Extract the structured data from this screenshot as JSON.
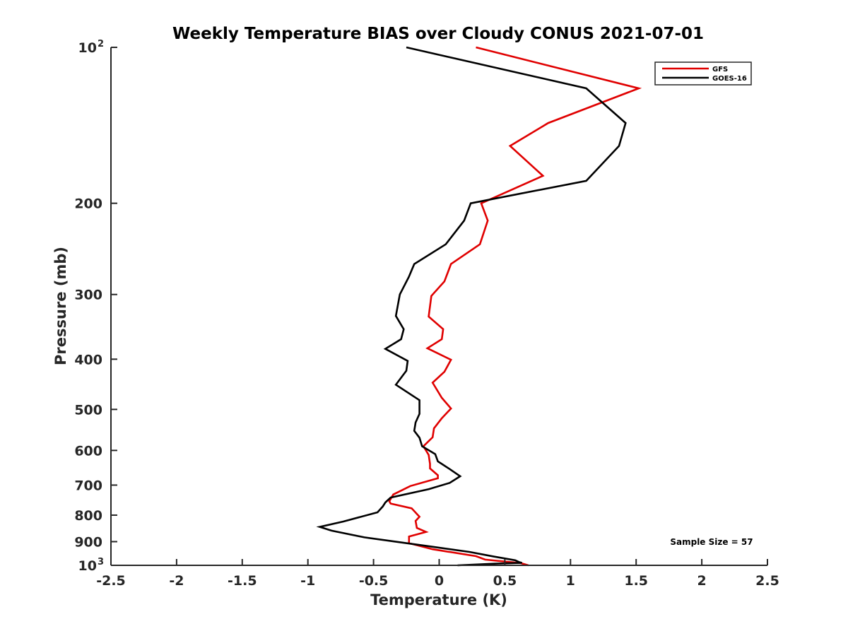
{
  "chart_data": {
    "type": "line",
    "title": "Weekly Temperature BIAS over Cloudy CONUS 2021-07-01",
    "xlabel": "Temperature (K)",
    "ylabel": "Pressure (mb)",
    "xlim": [
      -2.5,
      2.5
    ],
    "ylim": [
      1000,
      100
    ],
    "y_scale": "log",
    "y_reversed": true,
    "grid": false,
    "legend_position": "top-right",
    "x_ticks": [
      {
        "value": -2.5,
        "label": "-2.5"
      },
      {
        "value": -2,
        "label": "-2"
      },
      {
        "value": -1.5,
        "label": "-1.5"
      },
      {
        "value": -1,
        "label": "-1"
      },
      {
        "value": -0.5,
        "label": "-0.5"
      },
      {
        "value": 0,
        "label": "0"
      },
      {
        "value": 0.5,
        "label": "0.5"
      },
      {
        "value": 1,
        "label": "1"
      },
      {
        "value": 1.5,
        "label": "1.5"
      },
      {
        "value": 2,
        "label": "2"
      },
      {
        "value": 2.5,
        "label": "2.5"
      }
    ],
    "y_ticks": [
      {
        "value": 100,
        "label": "10",
        "sup": "2"
      },
      {
        "value": 200,
        "label": "200"
      },
      {
        "value": 300,
        "label": "300"
      },
      {
        "value": 400,
        "label": "400"
      },
      {
        "value": 500,
        "label": "500"
      },
      {
        "value": 600,
        "label": "600"
      },
      {
        "value": 700,
        "label": "700"
      },
      {
        "value": 800,
        "label": "800"
      },
      {
        "value": 900,
        "label": "900"
      },
      {
        "value": 1000,
        "label": "10",
        "sup": "3"
      }
    ],
    "annotation": "Sample Size = 57",
    "series": [
      {
        "name": "GFS",
        "color": "#e00000",
        "points": [
          [
            0.28,
            100
          ],
          [
            1.52,
            120
          ],
          [
            0.83,
            140
          ],
          [
            0.54,
            155
          ],
          [
            0.79,
            177
          ],
          [
            0.32,
            200
          ],
          [
            0.37,
            216
          ],
          [
            0.31,
            240
          ],
          [
            0.09,
            262
          ],
          [
            0.04,
            283
          ],
          [
            -0.06,
            302
          ],
          [
            -0.08,
            331
          ],
          [
            0.03,
            350
          ],
          [
            0.02,
            366
          ],
          [
            -0.09,
            381
          ],
          [
            0.09,
            401
          ],
          [
            0.04,
            423
          ],
          [
            -0.05,
            444
          ],
          [
            0.02,
            475
          ],
          [
            0.09,
            498
          ],
          [
            0.02,
            520
          ],
          [
            -0.04,
            544
          ],
          [
            -0.05,
            566
          ],
          [
            -0.12,
            589
          ],
          [
            -0.08,
            612
          ],
          [
            -0.07,
            637
          ],
          [
            -0.07,
            650
          ],
          [
            -0.01,
            670
          ],
          [
            -0.01,
            679
          ],
          [
            -0.22,
            703
          ],
          [
            -0.35,
            730
          ],
          [
            -0.38,
            752
          ],
          [
            -0.37,
            760
          ],
          [
            -0.21,
            776
          ],
          [
            -0.15,
            806
          ],
          [
            -0.18,
            821
          ],
          [
            -0.17,
            847
          ],
          [
            -0.1,
            862
          ],
          [
            -0.23,
            880
          ],
          [
            -0.23,
            906
          ],
          [
            -0.05,
            931
          ],
          [
            0.28,
            960
          ],
          [
            0.35,
            975
          ],
          [
            0.62,
            990
          ],
          [
            0.68,
            1000
          ]
        ]
      },
      {
        "name": "GOES-16",
        "color": "#000000",
        "points": [
          [
            -0.25,
            100
          ],
          [
            1.12,
            120
          ],
          [
            1.42,
            140
          ],
          [
            1.37,
            155
          ],
          [
            1.12,
            181
          ],
          [
            0.24,
            200
          ],
          [
            0.19,
            216
          ],
          [
            0.05,
            240
          ],
          [
            -0.19,
            262
          ],
          [
            -0.23,
            277
          ],
          [
            -0.3,
            300
          ],
          [
            -0.33,
            330
          ],
          [
            -0.27,
            350
          ],
          [
            -0.29,
            366
          ],
          [
            -0.41,
            382
          ],
          [
            -0.24,
            403
          ],
          [
            -0.25,
            421
          ],
          [
            -0.33,
            448
          ],
          [
            -0.15,
            480
          ],
          [
            -0.15,
            510
          ],
          [
            -0.18,
            530
          ],
          [
            -0.19,
            550
          ],
          [
            -0.15,
            567
          ],
          [
            -0.13,
            589
          ],
          [
            -0.03,
            610
          ],
          [
            -0.01,
            630
          ],
          [
            0.08,
            652
          ],
          [
            0.16,
            673
          ],
          [
            0.08,
            693
          ],
          [
            -0.08,
            713
          ],
          [
            -0.37,
            740
          ],
          [
            -0.41,
            756
          ],
          [
            -0.43,
            770
          ],
          [
            -0.47,
            790
          ],
          [
            -0.73,
            823
          ],
          [
            -0.91,
            843
          ],
          [
            -0.82,
            857
          ],
          [
            -0.57,
            883
          ],
          [
            -0.1,
            917
          ],
          [
            0.23,
            942
          ],
          [
            0.42,
            962
          ],
          [
            0.58,
            978
          ],
          [
            0.61,
            986
          ],
          [
            0.63,
            989
          ],
          [
            0.45,
            992
          ],
          [
            0.14,
            1000
          ]
        ]
      }
    ]
  }
}
